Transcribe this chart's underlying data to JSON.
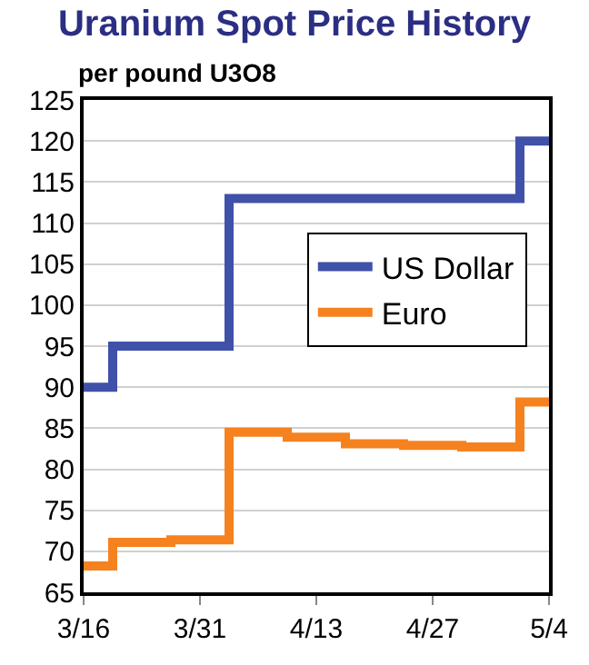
{
  "chart_data": {
    "type": "step",
    "title": "Uranium Spot Price History",
    "subtitle": "per pound U3O8",
    "categories": [
      "3/16",
      null,
      null,
      null,
      "3/31",
      null,
      null,
      null,
      "4/13",
      null,
      null,
      null,
      "4/27",
      null,
      null,
      null,
      "5/4"
    ],
    "series": [
      {
        "name": "US Dollar",
        "color": "#3f51a8",
        "values": [
          90,
          95,
          95,
          95,
          95,
          113,
          113,
          113,
          113,
          113,
          113,
          113,
          113,
          113,
          113,
          120,
          120
        ]
      },
      {
        "name": "Euro",
        "color": "#f5821f",
        "values": [
          68.2,
          71.1,
          71.1,
          71.4,
          71.4,
          84.5,
          84.5,
          83.9,
          83.9,
          83.1,
          83.1,
          82.9,
          82.9,
          82.7,
          82.7,
          88.2,
          88.2
        ]
      }
    ],
    "ylim": [
      65,
      125
    ],
    "yticks": [
      65,
      70,
      75,
      80,
      85,
      90,
      95,
      100,
      105,
      110,
      115,
      120,
      125
    ],
    "grid": "y",
    "legend": "right",
    "marker": "none",
    "line_style": "solid"
  }
}
